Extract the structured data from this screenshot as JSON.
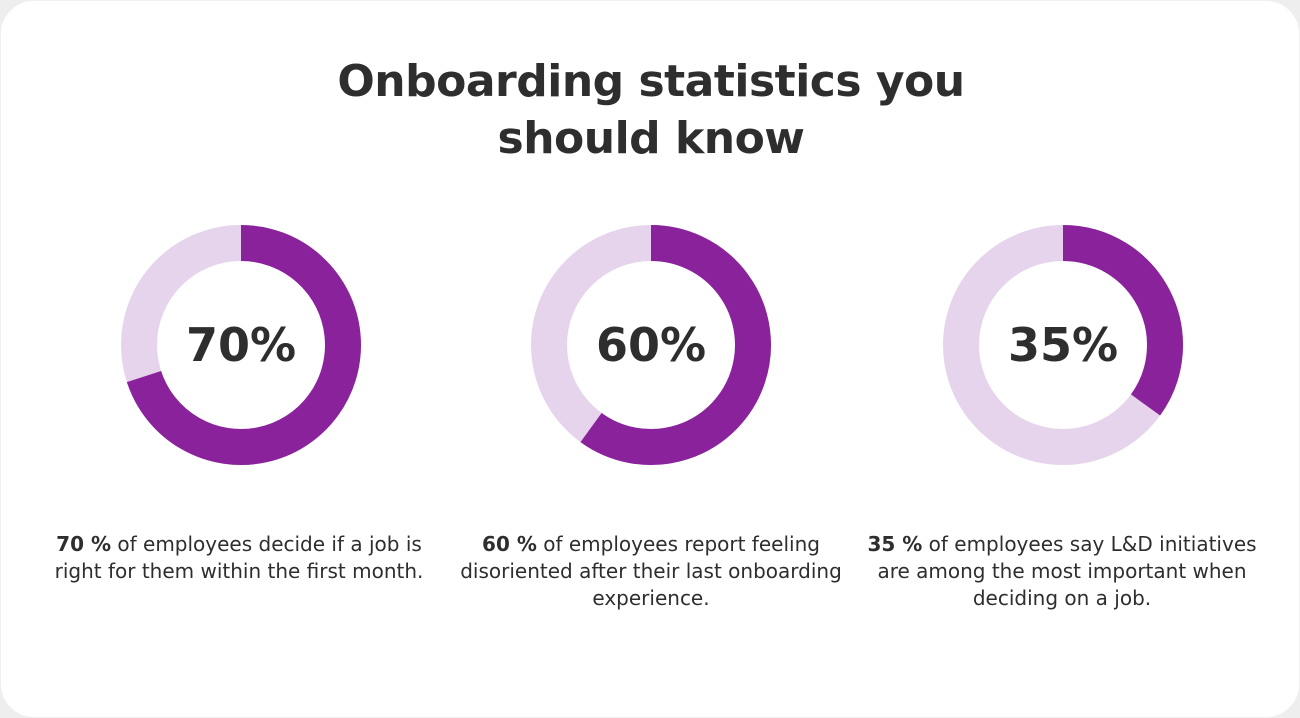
{
  "title_lines": [
    "Onboarding statistics you",
    "should know"
  ],
  "colors": {
    "filled": "#8a229c",
    "track": "#e6d4ec",
    "text": "#2e2e2e",
    "background": "#ffffff"
  },
  "chart_data": [
    {
      "type": "pie",
      "style": "donut",
      "value": 70,
      "center_label": "70%",
      "caption": {
        "emphasis": "70 %",
        "text": " of employees decide if a job is right for them within the first month."
      }
    },
    {
      "type": "pie",
      "style": "donut",
      "value": 60,
      "center_label": "60%",
      "caption": {
        "emphasis": "60 %",
        "text": " of employees report feeling disoriented after their last onboarding experience."
      }
    },
    {
      "type": "pie",
      "style": "donut",
      "value": 35,
      "center_label": "35%",
      "caption": {
        "emphasis": "35 %",
        "text": " of employees say L&D initiatives are among the most important when deciding on a job."
      }
    }
  ]
}
